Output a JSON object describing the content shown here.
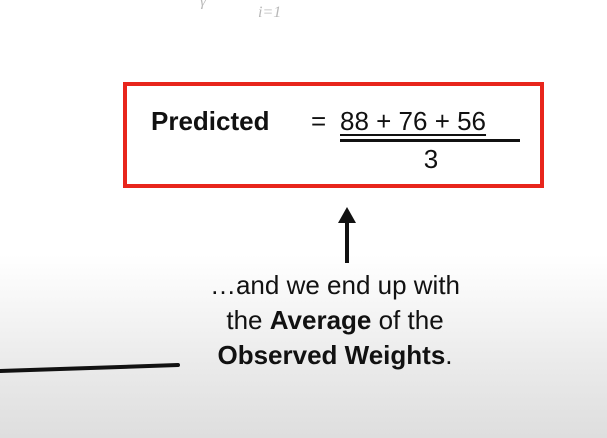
{
  "top_math": {
    "gamma": "γ",
    "index": "i=1"
  },
  "formula": {
    "label": "Predicted",
    "equals": "=",
    "numerator": "88 + 76 + 56",
    "denominator": "3"
  },
  "caption": {
    "line1": "…and we end up with",
    "line2_prefix": "the ",
    "line2_bold": "Average",
    "line2_suffix": " of the",
    "line3_bold": "Observed Weights",
    "line3_suffix": "."
  },
  "colors": {
    "box_border": "#e8251c",
    "text": "#111111"
  }
}
